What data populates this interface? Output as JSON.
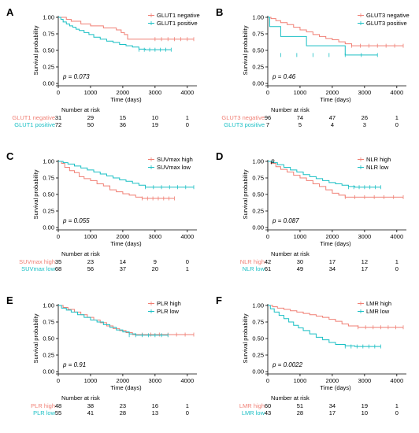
{
  "colors": {
    "red": "#f07f74",
    "cyan": "#19bfc4",
    "axis": "#000000"
  },
  "risk_header": "Number at risk",
  "chart_data": [
    {
      "id": "A",
      "type": "line",
      "xlabel": "Time (days)",
      "ylabel": "Survival probability",
      "xlim": [
        0,
        4200
      ],
      "ylim": [
        0,
        1.0
      ],
      "xticks": [
        0,
        1000,
        2000,
        3000,
        4000
      ],
      "yticks": [
        "0.00",
        "0.25",
        "0.50",
        "0.75",
        "1.00"
      ],
      "legend_position": "top-right",
      "pvalue": "p = 0.073",
      "risk_times": [
        0,
        1000,
        2000,
        3000,
        4000
      ],
      "series": [
        {
          "name": "GLUT1 negative",
          "risk_label_name": "GLUT1",
          "risk_label_value": "negative",
          "color": "#f07f74",
          "x": [
            0,
            120,
            250,
            400,
            550,
            700,
            850,
            1000,
            1200,
            1400,
            1600,
            1800,
            1950,
            2050,
            2150,
            2300,
            2600,
            3000,
            3400,
            3600,
            4200
          ],
          "y": [
            1.0,
            1.0,
            0.97,
            0.94,
            0.94,
            0.9,
            0.9,
            0.87,
            0.87,
            0.84,
            0.84,
            0.81,
            0.77,
            0.74,
            0.67,
            0.67,
            0.67,
            0.67,
            0.67,
            0.67,
            0.67
          ],
          "risk": [
            "31",
            "29",
            "15",
            "10",
            "1"
          ]
        },
        {
          "name": "GLUT1 positive",
          "risk_label_name": "GLUT1",
          "risk_label_value": "positive",
          "color": "#19bfc4",
          "x": [
            0,
            80,
            150,
            250,
            350,
            450,
            550,
            650,
            800,
            950,
            1100,
            1300,
            1500,
            1700,
            1900,
            2100,
            2300,
            2500,
            2700,
            3000,
            3500
          ],
          "y": [
            1.0,
            0.97,
            0.93,
            0.9,
            0.87,
            0.85,
            0.82,
            0.8,
            0.77,
            0.74,
            0.7,
            0.67,
            0.64,
            0.62,
            0.59,
            0.57,
            0.55,
            0.52,
            0.51,
            0.51,
            0.51
          ],
          "risk": [
            "72",
            "50",
            "36",
            "19",
            "0"
          ]
        }
      ]
    },
    {
      "id": "B",
      "type": "line",
      "xlabel": "Time (days)",
      "ylabel": "Survival probability",
      "xlim": [
        0,
        4200
      ],
      "ylim": [
        0,
        1.0
      ],
      "xticks": [
        0,
        1000,
        2000,
        3000,
        4000
      ],
      "yticks": [
        "0.00",
        "0.25",
        "0.50",
        "0.75",
        "1.00"
      ],
      "legend_position": "top-right",
      "pvalue": "p = 0.46",
      "risk_times": [
        0,
        1000,
        2000,
        3000,
        4000
      ],
      "series": [
        {
          "name": "GLUT3 negative",
          "risk_label_name": "GLUT3",
          "risk_label_value": "negative",
          "color": "#f07f74",
          "x": [
            0,
            100,
            250,
            400,
            600,
            800,
            1000,
            1200,
            1400,
            1600,
            1800,
            2000,
            2200,
            2400,
            2600,
            3000,
            3600,
            4200
          ],
          "y": [
            1.0,
            0.98,
            0.95,
            0.92,
            0.89,
            0.85,
            0.81,
            0.78,
            0.74,
            0.71,
            0.68,
            0.66,
            0.63,
            0.6,
            0.57,
            0.57,
            0.57,
            0.57
          ],
          "risk": [
            "96",
            "74",
            "47",
            "26",
            "1"
          ]
        },
        {
          "name": "GLUT3 positive",
          "risk_label_name": "GLUT3",
          "risk_label_value": "positive",
          "color": "#19bfc4",
          "x": [
            0,
            60,
            400,
            1200,
            2400,
            3400
          ],
          "y": [
            1.0,
            0.86,
            0.71,
            0.57,
            0.43,
            0.43
          ],
          "risk": [
            "7",
            "5",
            "4",
            "3",
            "0"
          ]
        }
      ]
    },
    {
      "id": "C",
      "type": "line",
      "xlabel": "Time (days)",
      "ylabel": "Survival probability",
      "xlim": [
        0,
        4200
      ],
      "ylim": [
        0,
        1.0
      ],
      "xticks": [
        0,
        1000,
        2000,
        3000,
        4000
      ],
      "yticks": [
        "0.00",
        "0.25",
        "0.50",
        "0.75",
        "1.00"
      ],
      "legend_position": "top-right",
      "pvalue": "p = 0.055",
      "risk_times": [
        0,
        1000,
        2000,
        3000,
        4000
      ],
      "series": [
        {
          "name": "SUVmax high",
          "risk_label_name": "SUVmax",
          "risk_label_value": "high",
          "color": "#f07f74",
          "x": [
            0,
            100,
            200,
            350,
            500,
            650,
            800,
            1000,
            1200,
            1400,
            1600,
            1800,
            2000,
            2200,
            2400,
            2600,
            2800,
            3000,
            3600
          ],
          "y": [
            1.0,
            0.97,
            0.91,
            0.86,
            0.83,
            0.77,
            0.74,
            0.71,
            0.66,
            0.63,
            0.57,
            0.54,
            0.51,
            0.49,
            0.46,
            0.44,
            0.44,
            0.44,
            0.44
          ],
          "risk": [
            "35",
            "23",
            "14",
            "9",
            "0"
          ]
        },
        {
          "name": "SUVmax low",
          "risk_label_name": "SUVmax",
          "risk_label_value": "low",
          "color": "#19bfc4",
          "x": [
            0,
            150,
            300,
            500,
            700,
            900,
            1100,
            1300,
            1500,
            1700,
            1900,
            2100,
            2300,
            2500,
            2700,
            3000,
            3600,
            4200
          ],
          "y": [
            1.0,
            0.98,
            0.96,
            0.93,
            0.9,
            0.87,
            0.84,
            0.81,
            0.78,
            0.75,
            0.72,
            0.7,
            0.67,
            0.64,
            0.61,
            0.61,
            0.61,
            0.61
          ],
          "risk": [
            "68",
            "56",
            "37",
            "20",
            "1"
          ]
        }
      ]
    },
    {
      "id": "D",
      "type": "line",
      "xlabel": "Time (days)",
      "ylabel": "Survival probability",
      "xlim": [
        0,
        4200
      ],
      "ylim": [
        0,
        1.0
      ],
      "xticks": [
        0,
        1000,
        2000,
        3000,
        4000
      ],
      "yticks": [
        "0.00",
        "0.25",
        "0.50",
        "0.75",
        "1.00"
      ],
      "legend_position": "top-right",
      "pvalue": "p = 0.087",
      "annotation": "p",
      "risk_times": [
        0,
        1000,
        2000,
        3000,
        4000
      ],
      "series": [
        {
          "name": "NLR high",
          "risk_label_name": "NLR",
          "risk_label_value": "high",
          "color": "#f07f74",
          "x": [
            0,
            100,
            250,
            400,
            600,
            800,
            1000,
            1200,
            1400,
            1600,
            1800,
            2000,
            2200,
            2400,
            3000,
            3600,
            4200
          ],
          "y": [
            1.0,
            0.97,
            0.92,
            0.88,
            0.84,
            0.79,
            0.75,
            0.71,
            0.66,
            0.62,
            0.57,
            0.52,
            0.49,
            0.46,
            0.46,
            0.46,
            0.46
          ],
          "risk": [
            "42",
            "30",
            "17",
            "12",
            "1"
          ]
        },
        {
          "name": "NLR low",
          "risk_label_name": "NLR",
          "risk_label_value": "low",
          "color": "#19bfc4",
          "x": [
            0,
            150,
            300,
            500,
            700,
            900,
            1100,
            1300,
            1500,
            1700,
            1900,
            2100,
            2300,
            2500,
            2700,
            3000,
            3500
          ],
          "y": [
            1.0,
            0.98,
            0.95,
            0.91,
            0.87,
            0.84,
            0.8,
            0.77,
            0.74,
            0.71,
            0.68,
            0.66,
            0.64,
            0.62,
            0.61,
            0.61,
            0.61
          ],
          "risk": [
            "61",
            "49",
            "34",
            "17",
            "0"
          ]
        }
      ]
    },
    {
      "id": "E",
      "type": "line",
      "xlabel": "Time (days)",
      "ylabel": "Survival probability",
      "xlim": [
        0,
        4200
      ],
      "ylim": [
        0,
        1.0
      ],
      "xticks": [
        0,
        1000,
        2000,
        3000,
        4000
      ],
      "yticks": [
        "0.00",
        "0.25",
        "0.50",
        "0.75",
        "1.00"
      ],
      "legend_position": "top-right",
      "pvalue": "p = 0.91",
      "risk_times": [
        0,
        1000,
        2000,
        3000,
        4000
      ],
      "series": [
        {
          "name": "PLR high",
          "risk_label_name": "PLR",
          "risk_label_value": "high",
          "color": "#f07f74",
          "x": [
            0,
            150,
            300,
            500,
            700,
            900,
            1100,
            1300,
            1500,
            1700,
            1900,
            2100,
            2300,
            2600,
            3000,
            3600,
            4200
          ],
          "y": [
            1.0,
            0.97,
            0.94,
            0.9,
            0.86,
            0.82,
            0.78,
            0.74,
            0.69,
            0.65,
            0.62,
            0.59,
            0.56,
            0.56,
            0.56,
            0.56,
            0.56
          ],
          "risk": [
            "48",
            "38",
            "23",
            "16",
            "1"
          ]
        },
        {
          "name": "PLR low",
          "risk_label_name": "PLR",
          "risk_label_value": "low",
          "color": "#19bfc4",
          "x": [
            0,
            100,
            250,
            400,
            600,
            800,
            1000,
            1200,
            1400,
            1600,
            1800,
            2000,
            2200,
            2400,
            2800,
            3400
          ],
          "y": [
            1.0,
            0.96,
            0.93,
            0.9,
            0.86,
            0.82,
            0.78,
            0.75,
            0.71,
            0.67,
            0.63,
            0.6,
            0.57,
            0.55,
            0.55,
            0.55
          ],
          "risk": [
            "55",
            "41",
            "28",
            "13",
            "0"
          ]
        }
      ]
    },
    {
      "id": "F",
      "type": "line",
      "xlabel": "Time (days)",
      "ylabel": "Survival probability",
      "xlim": [
        0,
        4200
      ],
      "ylim": [
        0,
        1.0
      ],
      "xticks": [
        0,
        1000,
        2000,
        3000,
        4000
      ],
      "yticks": [
        "0.00",
        "0.25",
        "0.50",
        "0.75",
        "1.00"
      ],
      "legend_position": "top-right",
      "pvalue": "p = 0.0022",
      "risk_times": [
        0,
        1000,
        2000,
        3000,
        4000
      ],
      "series": [
        {
          "name": "LMR high",
          "risk_label_name": "LMR",
          "risk_label_value": "high",
          "color": "#f07f74",
          "x": [
            0,
            150,
            300,
            500,
            700,
            900,
            1100,
            1300,
            1500,
            1700,
            1900,
            2100,
            2300,
            2500,
            2800,
            3200,
            3600,
            4200
          ],
          "y": [
            1.0,
            0.98,
            0.96,
            0.94,
            0.92,
            0.9,
            0.88,
            0.86,
            0.84,
            0.82,
            0.79,
            0.76,
            0.72,
            0.69,
            0.67,
            0.67,
            0.67,
            0.67
          ],
          "risk": [
            "60",
            "51",
            "34",
            "19",
            "1"
          ]
        },
        {
          "name": "LMR low",
          "risk_label_name": "LMR",
          "risk_label_value": "low",
          "color": "#19bfc4",
          "x": [
            0,
            80,
            200,
            350,
            500,
            650,
            800,
            950,
            1100,
            1300,
            1500,
            1700,
            1900,
            2100,
            2400,
            2700,
            3000,
            3500
          ],
          "y": [
            1.0,
            0.95,
            0.9,
            0.85,
            0.8,
            0.75,
            0.7,
            0.66,
            0.62,
            0.57,
            0.52,
            0.48,
            0.44,
            0.41,
            0.39,
            0.38,
            0.38,
            0.38
          ],
          "risk": [
            "43",
            "28",
            "17",
            "10",
            "0"
          ]
        }
      ]
    }
  ]
}
